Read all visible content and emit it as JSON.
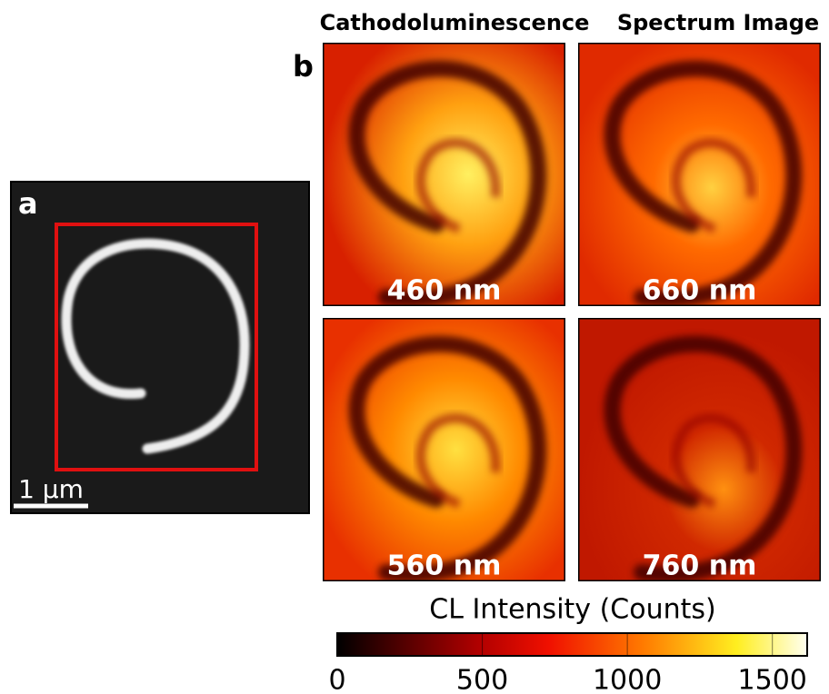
{
  "panels": {
    "a": {
      "label": "a",
      "scale_bar": "1 μm"
    },
    "b": {
      "label": "b",
      "title_left": "Cathodoluminescence",
      "title_right": "Spectrum Image",
      "maps": [
        "460 nm",
        "660 nm",
        "560 nm",
        "760 nm"
      ]
    }
  },
  "colorbar": {
    "label": "CL Intensity (Counts)",
    "lim": [
      0,
      1620
    ],
    "ticks": [
      0,
      500,
      1000,
      1500
    ]
  }
}
